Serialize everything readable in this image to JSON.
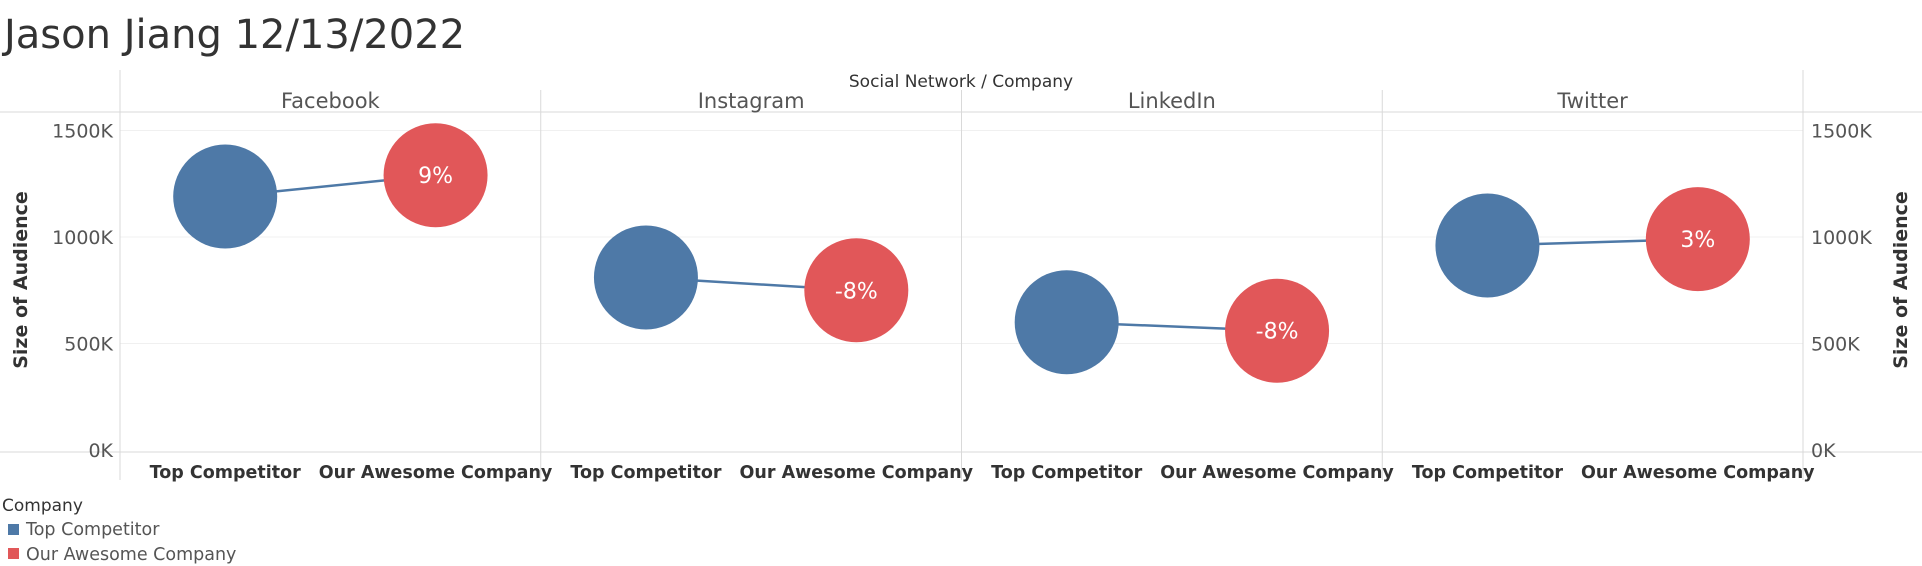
{
  "page_title": "Jason Jiang 12/13/2022",
  "chart_data": {
    "type": "scatter",
    "column_header": "Social Network  /  Company",
    "ylabel": "Size of Audience",
    "ylim": [
      0,
      1600000
    ],
    "yticks": [
      0,
      500000,
      1000000,
      1500000
    ],
    "ytick_labels": [
      "0K",
      "500K",
      "1000K",
      "1500K"
    ],
    "categories": [
      "Top Competitor",
      "Our Awesome Company"
    ],
    "colors": {
      "Top Competitor": "#4e79a7",
      "Our Awesome Company": "#e15759",
      "line": "#4e79a7"
    },
    "panels": [
      {
        "name": "Facebook",
        "values": [
          1190000,
          1290000
        ],
        "label": "9%"
      },
      {
        "name": "Instagram",
        "values": [
          810000,
          750000
        ],
        "label": "-8%"
      },
      {
        "name": "LinkedIn",
        "values": [
          600000,
          560000
        ],
        "label": "-8%"
      },
      {
        "name": "Twitter",
        "values": [
          960000,
          990000
        ],
        "label": "3%"
      }
    ],
    "grid": true,
    "legend": {
      "title": "Company",
      "placement": "bottom-left",
      "items": [
        "Top Competitor",
        "Our Awesome Company"
      ]
    }
  }
}
